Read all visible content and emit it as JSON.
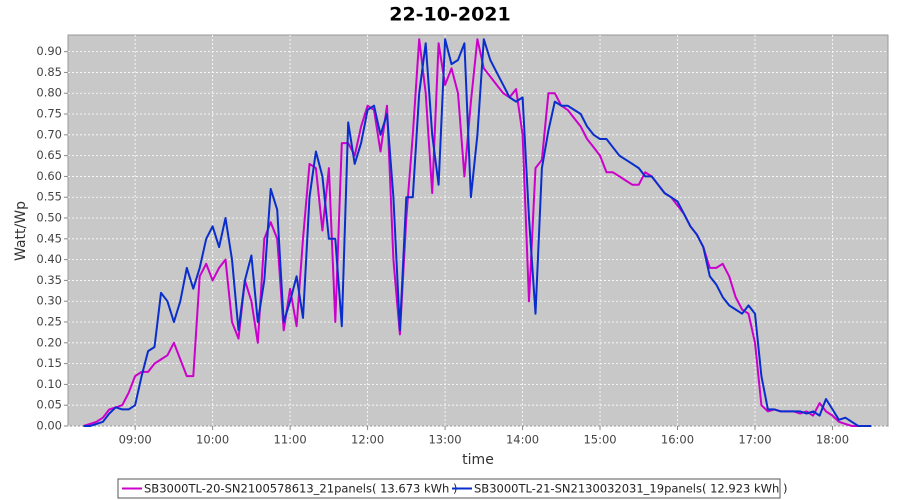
{
  "chart_data": {
    "type": "line",
    "title": "22-10-2021",
    "x_label": "time",
    "y_label": "Watt/Wp",
    "x": [
      "08:20",
      "08:25",
      "08:30",
      "08:35",
      "08:40",
      "08:45",
      "08:50",
      "08:55",
      "09:00",
      "09:05",
      "09:10",
      "09:15",
      "09:20",
      "09:25",
      "09:30",
      "09:35",
      "09:40",
      "09:45",
      "09:50",
      "09:55",
      "10:00",
      "10:05",
      "10:10",
      "10:15",
      "10:20",
      "10:25",
      "10:30",
      "10:35",
      "10:40",
      "10:45",
      "10:50",
      "10:55",
      "11:00",
      "11:05",
      "11:10",
      "11:15",
      "11:20",
      "11:25",
      "11:30",
      "11:35",
      "11:40",
      "11:45",
      "11:50",
      "11:55",
      "12:00",
      "12:05",
      "12:10",
      "12:15",
      "12:20",
      "12:25",
      "12:30",
      "12:35",
      "12:40",
      "12:45",
      "12:50",
      "12:55",
      "13:00",
      "13:05",
      "13:10",
      "13:15",
      "13:20",
      "13:25",
      "13:30",
      "13:35",
      "13:40",
      "13:45",
      "13:50",
      "13:55",
      "14:00",
      "14:05",
      "14:10",
      "14:15",
      "14:20",
      "14:25",
      "14:30",
      "14:35",
      "14:40",
      "14:45",
      "14:50",
      "14:55",
      "15:00",
      "15:05",
      "15:10",
      "15:15",
      "15:20",
      "15:25",
      "15:30",
      "15:35",
      "15:40",
      "15:45",
      "15:50",
      "15:55",
      "16:00",
      "16:05",
      "16:10",
      "16:15",
      "16:20",
      "16:25",
      "16:30",
      "16:35",
      "16:40",
      "16:45",
      "16:50",
      "16:55",
      "17:00",
      "17:05",
      "17:10",
      "17:15",
      "17:20",
      "17:25",
      "17:30",
      "17:35",
      "17:40",
      "17:45",
      "17:50",
      "17:55",
      "18:00",
      "18:05",
      "18:10",
      "18:15",
      "18:20",
      "18:25",
      "18:30"
    ],
    "series": [
      {
        "name": "SB3000TL-20-SN2100578613_21panels( 13.673 kWh )",
        "color": "#cc00cc",
        "values": [
          0,
          0.005,
          0.01,
          0.02,
          0.04,
          0.045,
          0.05,
          0.08,
          0.12,
          0.13,
          0.13,
          0.15,
          0.16,
          0.17,
          0.2,
          0.16,
          0.12,
          0.12,
          0.36,
          0.39,
          0.35,
          0.38,
          0.4,
          0.25,
          0.21,
          0.35,
          0.3,
          0.2,
          0.45,
          0.49,
          0.45,
          0.23,
          0.33,
          0.24,
          0.45,
          0.63,
          0.62,
          0.47,
          0.62,
          0.25,
          0.68,
          0.68,
          0.65,
          0.72,
          0.77,
          0.76,
          0.66,
          0.77,
          0.4,
          0.22,
          0.5,
          0.7,
          0.93,
          0.8,
          0.56,
          0.92,
          0.82,
          0.86,
          0.8,
          0.6,
          0.78,
          0.93,
          0.86,
          0.84,
          0.82,
          0.8,
          0.79,
          0.81,
          0.7,
          0.3,
          0.62,
          0.64,
          0.8,
          0.8,
          0.77,
          0.76,
          0.74,
          0.72,
          0.69,
          0.67,
          0.65,
          0.61,
          0.61,
          0.6,
          0.59,
          0.58,
          0.58,
          0.61,
          0.6,
          0.58,
          0.56,
          0.55,
          0.53,
          0.51,
          0.48,
          0.46,
          0.43,
          0.38,
          0.38,
          0.39,
          0.36,
          0.31,
          0.28,
          0.27,
          0.2,
          0.05,
          0.035,
          0.04,
          0.035,
          0.035,
          0.035,
          0.03,
          0.035,
          0.025,
          0.055,
          0.035,
          0.025,
          0.01,
          0.005,
          0,
          0,
          0,
          0
        ]
      },
      {
        "name": "SB3000TL-21-SN2130032031_19panels( 12.923 kWh )",
        "color": "#0a2ecc",
        "values": [
          0,
          0,
          0.005,
          0.01,
          0.03,
          0.045,
          0.04,
          0.04,
          0.05,
          0.12,
          0.18,
          0.19,
          0.32,
          0.3,
          0.25,
          0.3,
          0.38,
          0.33,
          0.38,
          0.45,
          0.48,
          0.43,
          0.5,
          0.4,
          0.23,
          0.35,
          0.41,
          0.25,
          0.35,
          0.57,
          0.52,
          0.25,
          0.3,
          0.36,
          0.26,
          0.55,
          0.66,
          0.6,
          0.45,
          0.45,
          0.24,
          0.73,
          0.63,
          0.68,
          0.76,
          0.77,
          0.7,
          0.75,
          0.55,
          0.23,
          0.55,
          0.55,
          0.8,
          0.92,
          0.7,
          0.58,
          0.93,
          0.87,
          0.88,
          0.92,
          0.55,
          0.7,
          0.93,
          0.88,
          0.85,
          0.82,
          0.79,
          0.78,
          0.79,
          0.5,
          0.27,
          0.62,
          0.71,
          0.78,
          0.77,
          0.77,
          0.76,
          0.75,
          0.72,
          0.7,
          0.69,
          0.69,
          0.67,
          0.65,
          0.64,
          0.63,
          0.62,
          0.6,
          0.6,
          0.58,
          0.56,
          0.55,
          0.54,
          0.51,
          0.48,
          0.46,
          0.43,
          0.36,
          0.34,
          0.31,
          0.29,
          0.28,
          0.27,
          0.29,
          0.27,
          0.12,
          0.04,
          0.04,
          0.035,
          0.035,
          0.035,
          0.035,
          0.03,
          0.035,
          0.025,
          0.065,
          0.04,
          0.015,
          0.02,
          0.01,
          0,
          0,
          0
        ]
      }
    ],
    "xlim": [
      "08:08",
      "18:43"
    ],
    "xticks": [
      "09:00",
      "10:00",
      "11:00",
      "12:00",
      "13:00",
      "14:00",
      "15:00",
      "16:00",
      "17:00",
      "18:00"
    ],
    "ylim": [
      0,
      0.94
    ],
    "yticks": [
      {
        "value": 0,
        "label": "0.00"
      },
      {
        "value": 0.05,
        "label": "0.05"
      },
      {
        "value": 0.1,
        "label": "0.10"
      },
      {
        "value": 0.15,
        "label": "0.15"
      },
      {
        "value": 0.2,
        "label": "0.20"
      },
      {
        "value": 0.25,
        "label": "0.25"
      },
      {
        "value": 0.3,
        "label": "0.30"
      },
      {
        "value": 0.35,
        "label": "0.35"
      },
      {
        "value": 0.4,
        "label": "0.40"
      },
      {
        "value": 0.45,
        "label": "0.45"
      },
      {
        "value": 0.5,
        "label": "0.50"
      },
      {
        "value": 0.55,
        "label": "0.55"
      },
      {
        "value": 0.6,
        "label": "0.60"
      },
      {
        "value": 0.65,
        "label": "0.65"
      },
      {
        "value": 0.7,
        "label": "0.70"
      },
      {
        "value": 0.75,
        "label": "0.75"
      },
      {
        "value": 0.8,
        "label": "0.80"
      },
      {
        "value": 0.85,
        "label": "0.85"
      },
      {
        "value": 0.9,
        "label": "0.90"
      }
    ],
    "grid": true
  }
}
